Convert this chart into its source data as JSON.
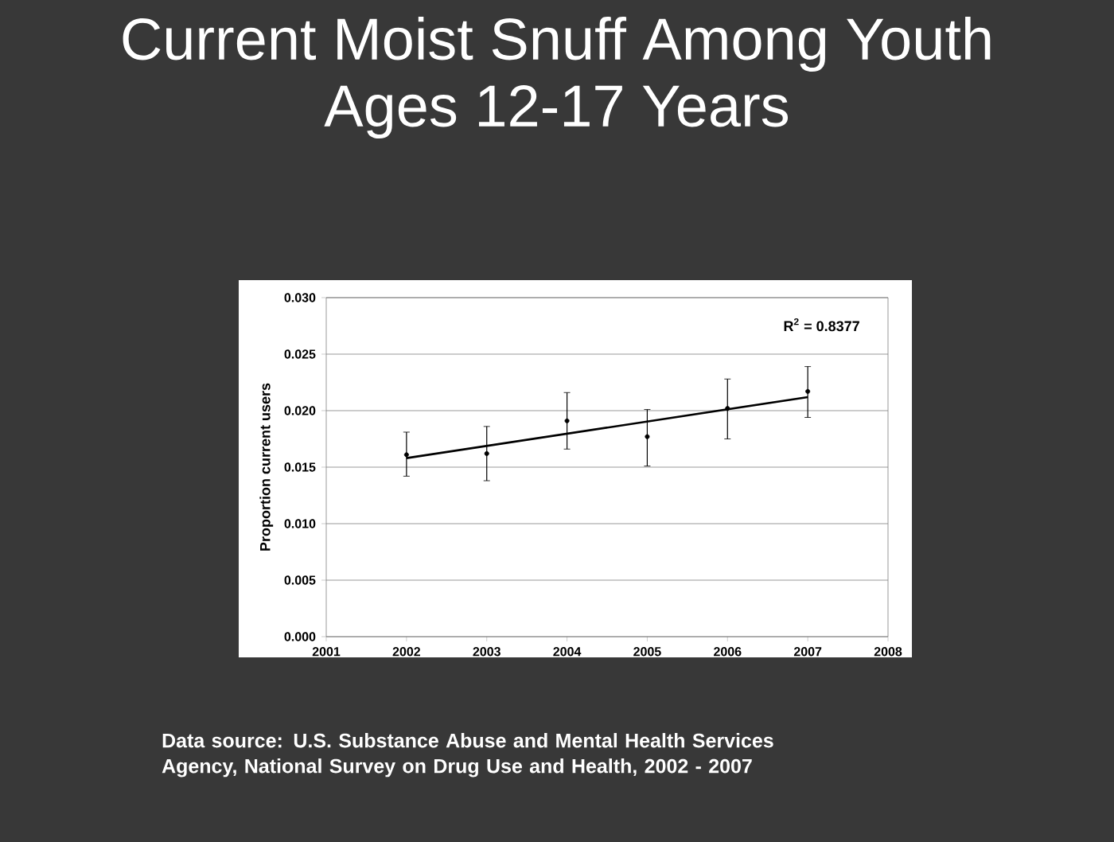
{
  "chart_data": {
    "type": "scatter",
    "title": "Current Moist Snuff Among Youth Ages 12-17 Years",
    "ylabel": "Proportion current users",
    "annotations": [
      "R$^{2}$ = 0.8377",
      "Data source: U.S. Substance Abuse and Mental Health Services Agency, National Survey on Drug Use and Health, 2002 - 2007"
    ],
    "series": [
      {
        "type": "scatter",
        "color": "#000000",
        "marker": "circle",
        "x": [
          2002,
          2003,
          2004,
          2005,
          2006,
          2007
        ],
        "values": [
          0.0161,
          0.0162,
          0.0191,
          0.0177,
          0.0202,
          0.0217
        ],
        "errors": [
          [
            0.0142,
            0.0181
          ],
          [
            0.0138,
            0.0186
          ],
          [
            0.0166,
            0.0216
          ],
          [
            0.0151,
            0.0201
          ],
          [
            0.0175,
            0.0228
          ],
          [
            0.0194,
            0.0239
          ]
        ]
      },
      {
        "type": "line",
        "color": "#000000",
        "marker": "none",
        "x": [
          2002,
          2007
        ],
        "values": [
          0.0158,
          0.0212
        ]
      }
    ],
    "xlim": [
      2001,
      2008
    ],
    "xticks": [
      2001,
      2002,
      2003,
      2004,
      2005,
      2006,
      2007,
      2008
    ],
    "ylim": [
      0,
      0.03
    ],
    "yticks": [
      {
        "value": 0,
        "label": "0.000"
      },
      {
        "value": 0.005,
        "label": "0.005"
      },
      {
        "value": 0.01,
        "label": "0.010"
      },
      {
        "value": 0.015,
        "label": "0.015"
      },
      {
        "value": 0.02,
        "label": "0.020"
      },
      {
        "value": 0.025,
        "label": "0.025"
      },
      {
        "value": 0.03,
        "label": "0.030"
      }
    ],
    "grid": "y"
  }
}
